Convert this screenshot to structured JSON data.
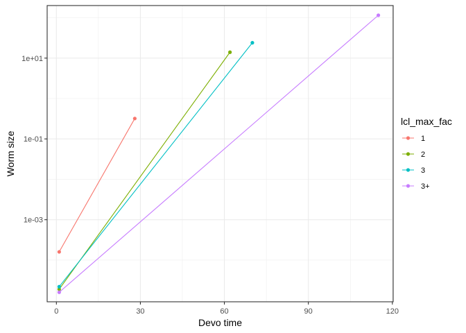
{
  "chart_data": {
    "type": "line",
    "xlabel": "Devo time",
    "ylabel": "Worm size",
    "y_scale": "log10",
    "x_ticks": [
      0,
      30,
      60,
      90,
      120
    ],
    "x_tick_labels": [
      "0",
      "30",
      "60",
      "90",
      "120"
    ],
    "y_ticks": [
      0.001,
      0.1,
      10
    ],
    "y_tick_labels": [
      "1e-03",
      "1e-01",
      "1e+01"
    ],
    "xlim": [
      -3.3,
      120.3
    ],
    "ylim": [
      9.3e-06,
      200
    ],
    "grid": true,
    "legend": {
      "title": "lcl_max_fac",
      "position": "right"
    },
    "series": [
      {
        "name": "1",
        "color": "#F8766D",
        "x": [
          1,
          28
        ],
        "y": [
          0.00016,
          0.32
        ]
      },
      {
        "name": "2",
        "color": "#7CAE00",
        "x": [
          1,
          62
        ],
        "y": [
          1.9e-05,
          14
        ]
      },
      {
        "name": "3",
        "color": "#00BFC4",
        "x": [
          1,
          70
        ],
        "y": [
          2.2e-05,
          24
        ]
      },
      {
        "name": "3+",
        "color": "#C77CFF",
        "x": [
          1,
          115
        ],
        "y": [
          1.6e-05,
          115
        ]
      }
    ]
  }
}
